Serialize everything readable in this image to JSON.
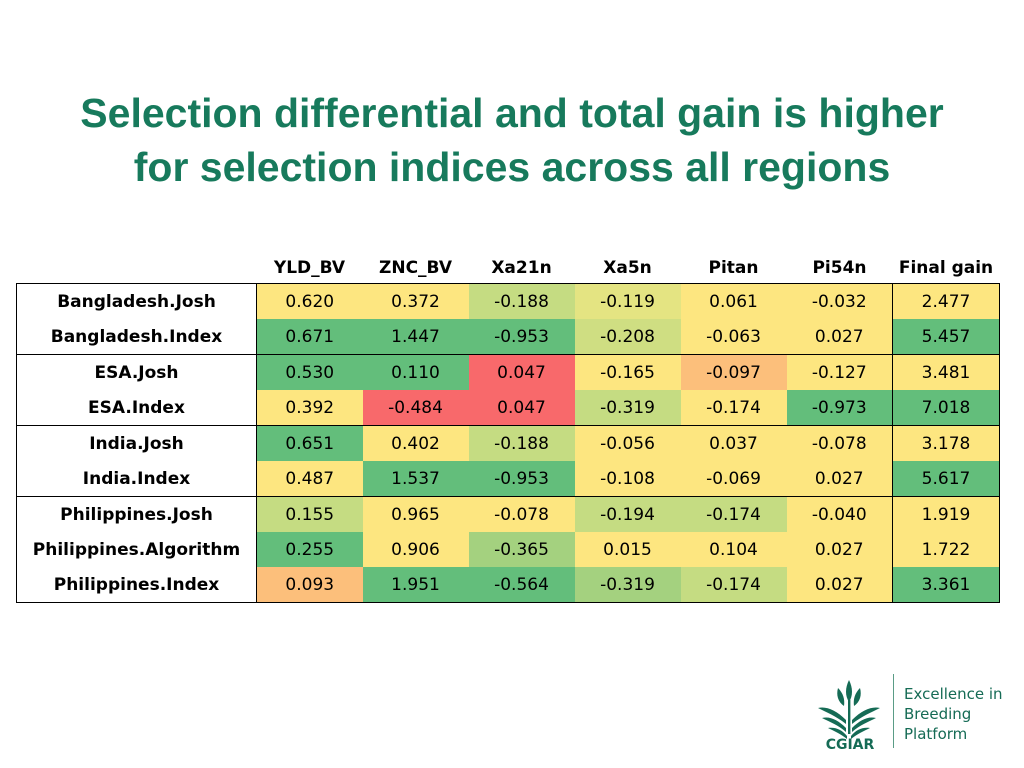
{
  "slide": {
    "title_line1": "Selection differential and total gain is higher",
    "title_line2": "for selection indices across all regions"
  },
  "table": {
    "columns": [
      "YLD_BV",
      "ZNC_BV",
      "Xa21n",
      "Xa5n",
      "Pitan",
      "Pi54n",
      "Final gain"
    ],
    "rows": [
      {
        "label": "Bangladesh.Josh",
        "values": [
          "0.620",
          "0.372",
          "-0.188",
          "-0.119",
          "0.061",
          "-0.032",
          "2.477"
        ],
        "colors": [
          "#fde680",
          "#fde680",
          "#c5dc82",
          "#e4e482",
          "#fde680",
          "#fde680",
          "#fde680"
        ]
      },
      {
        "label": "Bangladesh.Index",
        "values": [
          "0.671",
          "1.447",
          "-0.953",
          "-0.208",
          "-0.063",
          "0.027",
          "5.457"
        ],
        "colors": [
          "#63be7b",
          "#63be7b",
          "#63be7b",
          "#cfde82",
          "#fde680",
          "#fde680",
          "#63be7b"
        ]
      },
      {
        "label": "ESA.Josh",
        "values": [
          "0.530",
          "0.110",
          "0.047",
          "-0.165",
          "-0.097",
          "-0.127",
          "3.481"
        ],
        "colors": [
          "#63be7b",
          "#63be7b",
          "#f8696b",
          "#fde680",
          "#fcbf7b",
          "#fde680",
          "#fde680"
        ]
      },
      {
        "label": "ESA.Index",
        "values": [
          "0.392",
          "-0.484",
          "0.047",
          "-0.319",
          "-0.174",
          "-0.973",
          "7.018"
        ],
        "colors": [
          "#fde680",
          "#f8696b",
          "#f8696b",
          "#c5dc82",
          "#fde680",
          "#63be7b",
          "#63be7b"
        ]
      },
      {
        "label": "India.Josh",
        "values": [
          "0.651",
          "0.402",
          "-0.188",
          "-0.056",
          "0.037",
          "-0.078",
          "3.178"
        ],
        "colors": [
          "#63be7b",
          "#fde680",
          "#c5dc82",
          "#fde680",
          "#fde680",
          "#fde680",
          "#fde680"
        ]
      },
      {
        "label": "India.Index",
        "values": [
          "0.487",
          "1.537",
          "-0.953",
          "-0.108",
          "-0.069",
          "0.027",
          "5.617"
        ],
        "colors": [
          "#fde680",
          "#63be7b",
          "#63be7b",
          "#fde680",
          "#fde680",
          "#fde680",
          "#63be7b"
        ]
      },
      {
        "label": "Philippines.Josh",
        "values": [
          "0.155",
          "0.965",
          "-0.078",
          "-0.194",
          "-0.174",
          "-0.040",
          "1.919"
        ],
        "colors": [
          "#c5dc82",
          "#fde680",
          "#fde680",
          "#c5dc82",
          "#c5dc82",
          "#fde680",
          "#fde680"
        ]
      },
      {
        "label": "Philippines.Algorithm",
        "values": [
          "0.255",
          "0.906",
          "-0.365",
          "0.015",
          "0.104",
          "0.027",
          "1.722"
        ],
        "colors": [
          "#63be7b",
          "#fde680",
          "#a4d17f",
          "#fde680",
          "#fde680",
          "#fde680",
          "#fde680"
        ]
      },
      {
        "label": "Philippines.Index",
        "values": [
          "0.093",
          "1.951",
          "-0.564",
          "-0.319",
          "-0.174",
          "0.027",
          "3.361"
        ],
        "colors": [
          "#fcbf7b",
          "#63be7b",
          "#63be7b",
          "#a4d17f",
          "#c5dc82",
          "#fde680",
          "#63be7b"
        ]
      }
    ]
  },
  "logo": {
    "brand": "CGIAR",
    "line1": "Excellence in",
    "line2": "Breeding",
    "line3": "Platform",
    "color": "#156b55"
  }
}
